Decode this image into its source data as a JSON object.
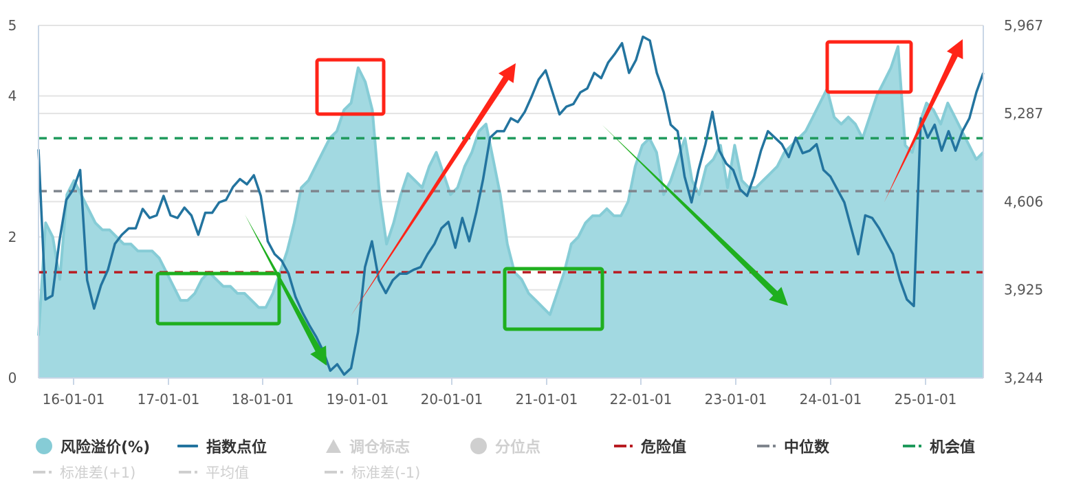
{
  "chart_data": {
    "type": "line",
    "title": "",
    "xlabel": "",
    "ylabel_left": "风险溢价(%)",
    "ylabel_right": "指数点位",
    "x_ticks": [
      "16-01-01",
      "17-01-01",
      "18-01-01",
      "19-01-01",
      "20-01-01",
      "21-01-01",
      "22-01-01",
      "23-01-01",
      "24-01-01",
      "25-01-01"
    ],
    "y_left_ticks": [
      "0",
      "2",
      "4",
      "5"
    ],
    "y_left_range": [
      0,
      5
    ],
    "y_right_ticks": [
      "3,244",
      "3,925",
      "4,606",
      "5,287",
      "5,967"
    ],
    "y_right_range": [
      3244,
      5967
    ],
    "grid": true,
    "legend_position": "bottom",
    "x_start": "2015-08",
    "x_step": "quarter-month",
    "series": [
      {
        "name": "风险溢价(%)",
        "axis": "left",
        "type": "area",
        "color": "#86ccd6",
        "fill": "#a2d9e1",
        "values": [
          0.6,
          2.2,
          2.0,
          1.4,
          2.6,
          2.8,
          2.6,
          2.4,
          2.2,
          2.1,
          2.1,
          2.0,
          1.9,
          1.9,
          1.8,
          1.8,
          1.8,
          1.7,
          1.5,
          1.3,
          1.1,
          1.1,
          1.2,
          1.4,
          1.5,
          1.4,
          1.3,
          1.3,
          1.2,
          1.2,
          1.1,
          1.0,
          1.0,
          1.2,
          1.5,
          1.8,
          2.2,
          2.7,
          2.8,
          3.0,
          3.2,
          3.4,
          3.5,
          3.8,
          3.9,
          4.4,
          4.2,
          3.8,
          2.6,
          1.9,
          2.2,
          2.6,
          2.9,
          2.8,
          2.7,
          3.0,
          3.2,
          2.9,
          2.6,
          2.7,
          3.0,
          3.2,
          3.5,
          3.6,
          3.1,
          2.6,
          1.9,
          1.5,
          1.4,
          1.2,
          1.1,
          1.0,
          0.9,
          1.2,
          1.5,
          1.9,
          2.0,
          2.2,
          2.3,
          2.3,
          2.4,
          2.3,
          2.3,
          2.5,
          3.0,
          3.3,
          3.4,
          3.2,
          2.6,
          2.8,
          3.1,
          3.4,
          2.8,
          2.6,
          3.0,
          3.1,
          3.3,
          2.7,
          3.3,
          2.8,
          2.7,
          2.7,
          2.8,
          2.9,
          3.0,
          3.2,
          3.3,
          3.4,
          3.5,
          3.7,
          3.9,
          4.1,
          3.7,
          3.6,
          3.7,
          3.6,
          3.4,
          3.7,
          4.0,
          4.2,
          4.4,
          4.7,
          3.3,
          3.2,
          3.6,
          3.9,
          3.8,
          3.6,
          3.9,
          3.7,
          3.5,
          3.3,
          3.1,
          3.2
        ]
      },
      {
        "name": "指数点位",
        "axis": "right",
        "type": "line",
        "color": "#23749f",
        "values": [
          5010,
          3850,
          3880,
          4300,
          4620,
          4700,
          4850,
          4000,
          3780,
          3960,
          4080,
          4280,
          4350,
          4400,
          4400,
          4550,
          4480,
          4500,
          4650,
          4500,
          4480,
          4560,
          4500,
          4350,
          4520,
          4520,
          4600,
          4620,
          4720,
          4780,
          4740,
          4810,
          4650,
          4300,
          4200,
          4150,
          4050,
          3870,
          3750,
          3650,
          3560,
          3450,
          3300,
          3350,
          3270,
          3320,
          3600,
          4100,
          4300,
          4000,
          3900,
          4000,
          4050,
          4050,
          4080,
          4100,
          4200,
          4280,
          4400,
          4450,
          4250,
          4480,
          4300,
          4520,
          4780,
          5100,
          5150,
          5150,
          5250,
          5220,
          5300,
          5420,
          5550,
          5620,
          5450,
          5280,
          5340,
          5360,
          5450,
          5480,
          5600,
          5560,
          5680,
          5750,
          5830,
          5600,
          5700,
          5880,
          5850,
          5600,
          5450,
          5200,
          5150,
          4800,
          4600,
          4850,
          5050,
          5300,
          5000,
          4900,
          4850,
          4700,
          4650,
          4800,
          5000,
          5150,
          5100,
          5050,
          4950,
          5100,
          4980,
          5000,
          5050,
          4850,
          4800,
          4700,
          4600,
          4400,
          4200,
          4500,
          4480,
          4400,
          4300,
          4200,
          4000,
          3850,
          3800,
          5250,
          5100,
          5200,
          5000,
          5150,
          5000,
          5150,
          5250,
          5450,
          5600
        ]
      },
      {
        "name": "危险值",
        "axis": "left",
        "type": "hline",
        "color": "#b81c22",
        "value": 1.5
      },
      {
        "name": "中位数",
        "axis": "left",
        "type": "hline",
        "color": "#7f858d",
        "value": 2.65
      },
      {
        "name": "机会值",
        "axis": "left",
        "type": "hline",
        "color": "#1f9a5c",
        "value": 3.4
      }
    ],
    "annotations": [
      {
        "type": "rect",
        "color": "#ff2418",
        "label": "high-premium-2019",
        "x": [
          461,
          558
        ],
        "y": [
          87,
          166
        ]
      },
      {
        "type": "rect",
        "color": "#ff2418",
        "label": "high-premium-2024",
        "x": [
          1203,
          1325
        ],
        "y": [
          61,
          134
        ]
      },
      {
        "type": "rect",
        "color": "#1faf1f",
        "label": "low-premium-2017",
        "x": [
          229,
          406
        ],
        "y": [
          398,
          471
        ]
      },
      {
        "type": "rect",
        "color": "#1faf1f",
        "label": "low-premium-2021",
        "x": [
          734,
          876
        ],
        "y": [
          391,
          479
        ]
      },
      {
        "type": "arrow",
        "color": "#ff2418",
        "direction": "up",
        "from": [
          510,
          460
        ],
        "to": [
          750,
          92
        ]
      },
      {
        "type": "arrow",
        "color": "#ff2418",
        "direction": "up",
        "from": [
          1286,
          294
        ],
        "to": [
          1400,
          57
        ]
      },
      {
        "type": "arrow",
        "color": "#1faf1f",
        "direction": "down",
        "from": [
          356,
          312
        ],
        "to": [
          475,
          532
        ]
      },
      {
        "type": "arrow",
        "color": "#1faf1f",
        "direction": "down",
        "from": [
          876,
          182
        ],
        "to": [
          1146,
          445
        ]
      }
    ]
  },
  "legend": {
    "row1": [
      {
        "label": "风险溢价(%)",
        "symbol": "circle",
        "color": "#86ccd6",
        "active": true
      },
      {
        "label": "指数点位",
        "symbol": "line",
        "color": "#23749f",
        "active": true
      },
      {
        "label": "调仓标志",
        "symbol": "triangle",
        "color": "#cfcfcf",
        "active": false
      },
      {
        "label": "分位点",
        "symbol": "circle",
        "color": "#cfcfcf",
        "active": false
      },
      {
        "label": "危险值",
        "symbol": "dash-dot",
        "color": "#b81c22",
        "active": true
      },
      {
        "label": "中位数",
        "symbol": "dash-dot",
        "color": "#7f858d",
        "active": true
      },
      {
        "label": "机会值",
        "symbol": "dash-dot",
        "color": "#1f9a5c",
        "active": true
      }
    ],
    "row2": [
      {
        "label": "标准差(+1)",
        "symbol": "dash-dot",
        "color": "#cfcfcf",
        "active": false
      },
      {
        "label": "平均值",
        "symbol": "dash-dot",
        "color": "#cfcfcf",
        "active": false
      },
      {
        "label": "标准差(-1)",
        "symbol": "dash-dot",
        "color": "#cfcfcf",
        "active": false
      }
    ]
  }
}
